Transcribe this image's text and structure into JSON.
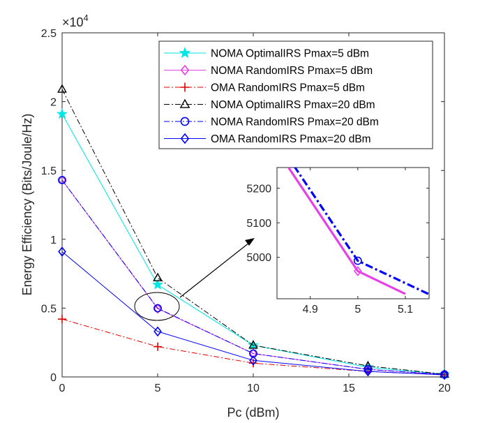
{
  "chart_data": [
    {
      "type": "line",
      "xlabel": "Pc (dBm)",
      "ylabel": "Energy Efficiency (Bits/Joule/Hz)",
      "y_multiplier_base": "×10",
      "y_multiplier_exp": "4",
      "xlim": [
        0,
        20
      ],
      "ylim": [
        0,
        2.5
      ],
      "x_ticks": [
        0,
        5,
        10,
        15,
        20
      ],
      "y_ticks": [
        0,
        0.5,
        1,
        1.5,
        2,
        2.5
      ],
      "x_tick_labels": [
        "0",
        "5",
        "10",
        "15",
        "20"
      ],
      "y_tick_labels": [
        "0",
        "0.5",
        "1",
        "1.5",
        "2",
        "2.5"
      ],
      "grid": false,
      "legend_position": "top-right",
      "series": [
        {
          "name": "NOMA OptimalIRS Pmax=5 dBm",
          "x": [
            0,
            5,
            10,
            16,
            20
          ],
          "values": [
            1.91,
            0.67,
            0.23,
            0.07,
            0.02
          ],
          "color": "#00e5e5",
          "marker": "star",
          "dash": "solid"
        },
        {
          "name": "NOMA RandomIRS Pmax=5 dBm",
          "x": [
            0,
            5,
            10,
            16,
            20
          ],
          "values": [
            1.43,
            0.496,
            0.17,
            0.055,
            0.018
          ],
          "color": "#e541e5",
          "marker": "diamond",
          "dash": "solid"
        },
        {
          "name": "OMA RandomIRS Pmax=5 dBm",
          "x": [
            0,
            5,
            10,
            16,
            20
          ],
          "values": [
            0.42,
            0.22,
            0.1,
            0.04,
            0.015
          ],
          "color": "#e00000",
          "marker": "plus",
          "dash": "dashdot"
        },
        {
          "name": "NOMA OptimalIRS Pmax=20 dBm",
          "x": [
            0,
            5,
            10,
            16,
            20
          ],
          "values": [
            2.09,
            0.72,
            0.23,
            0.08,
            0.02
          ],
          "color": "#000000",
          "marker": "triangle",
          "dash": "dashdot"
        },
        {
          "name": "NOMA RandomIRS Pmax=20 dBm",
          "x": [
            0,
            5,
            10,
            16,
            20
          ],
          "values": [
            1.43,
            0.499,
            0.17,
            0.055,
            0.018
          ],
          "color": "#0000ff",
          "marker": "circle",
          "dash": "dashdot"
        },
        {
          "name": "OMA RandomIRS Pmax=20 dBm",
          "x": [
            0,
            5,
            10,
            16,
            20
          ],
          "values": [
            0.91,
            0.33,
            0.12,
            0.04,
            0.015
          ],
          "color": "#0000ff",
          "marker": "diamond",
          "dash": "solid"
        }
      ]
    },
    {
      "type": "line",
      "title": "",
      "xlim": [
        4.83,
        5.15
      ],
      "ylim": [
        4880,
        5260
      ],
      "x_ticks": [
        4.9,
        5,
        5.1
      ],
      "y_ticks": [
        5000,
        5100,
        5200
      ],
      "x_tick_labels": [
        "4.9",
        "5",
        "5.1"
      ],
      "y_tick_labels": [
        "5000",
        "5100",
        "5200"
      ],
      "series": [
        {
          "name": "NOMA RandomIRS Pmax=5 dBm",
          "x": [
            4.83,
            5,
            5.1
          ],
          "values": [
            5310,
            4960,
            4894
          ],
          "color": "#e541e5",
          "marker": "diamond",
          "dash": "solid"
        },
        {
          "name": "NOMA RandomIRS Pmax=20 dBm",
          "x": [
            4.83,
            5,
            5.15
          ],
          "values": [
            5338,
            4990,
            4893
          ],
          "color": "#0000ff",
          "marker": "circle",
          "dash": "dashdot"
        }
      ]
    }
  ]
}
